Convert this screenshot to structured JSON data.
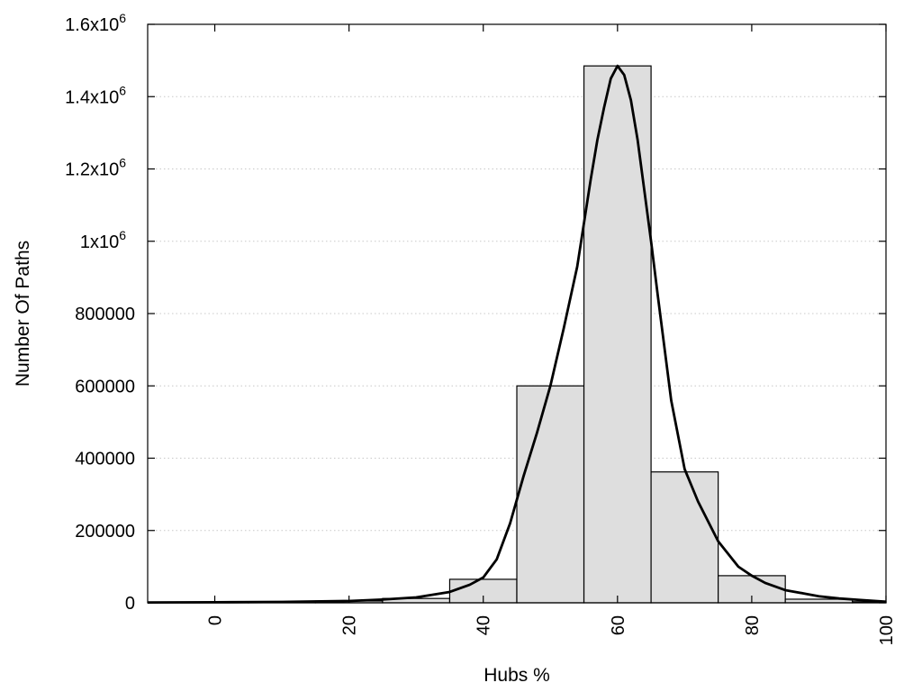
{
  "chart_data": {
    "type": "bar",
    "xlabel": "Hubs %",
    "ylabel": "Number Of Paths",
    "xlim": [
      -10,
      100
    ],
    "ylim": [
      0,
      1600000
    ],
    "grid": true,
    "x_ticks": [
      0,
      20,
      40,
      60,
      80,
      100
    ],
    "y_ticks": [
      {
        "value": 0,
        "label": "0"
      },
      {
        "value": 200000,
        "label": "200000"
      },
      {
        "value": 400000,
        "label": "400000"
      },
      {
        "value": 600000,
        "label": "600000"
      },
      {
        "value": 800000,
        "label": "800000"
      },
      {
        "value": 1000000,
        "label": "1x10",
        "exp": "6"
      },
      {
        "value": 1200000,
        "label": "1.2x10",
        "exp": "6"
      },
      {
        "value": 1400000,
        "label": "1.4x10",
        "exp": "6"
      },
      {
        "value": 1600000,
        "label": "1.6x10",
        "exp": "6"
      }
    ],
    "bin_width": 10,
    "series": [
      {
        "type": "histogram",
        "centers": [
          0,
          10,
          20,
          30,
          40,
          50,
          60,
          70,
          80,
          90,
          100
        ],
        "values": [
          1000,
          2000,
          5000,
          12000,
          65000,
          600000,
          1485000,
          362000,
          75000,
          10000,
          3000
        ]
      },
      {
        "type": "line",
        "x": [
          -10,
          0,
          10,
          20,
          25,
          30,
          35,
          38,
          40,
          42,
          44,
          46,
          48,
          50,
          52,
          54,
          55,
          56,
          57,
          58,
          59,
          60,
          61,
          62,
          63,
          64,
          65,
          66,
          68,
          70,
          72,
          75,
          78,
          80,
          82,
          85,
          88,
          90,
          93,
          96,
          100
        ],
        "y": [
          1000,
          1500,
          2500,
          5000,
          9000,
          15000,
          30000,
          50000,
          70000,
          120000,
          220000,
          350000,
          470000,
          600000,
          760000,
          930000,
          1050000,
          1170000,
          1280000,
          1370000,
          1450000,
          1485000,
          1460000,
          1390000,
          1280000,
          1140000,
          1000000,
          850000,
          560000,
          370000,
          280000,
          170000,
          100000,
          75000,
          55000,
          35000,
          25000,
          18000,
          12000,
          8000,
          3000
        ]
      }
    ]
  }
}
